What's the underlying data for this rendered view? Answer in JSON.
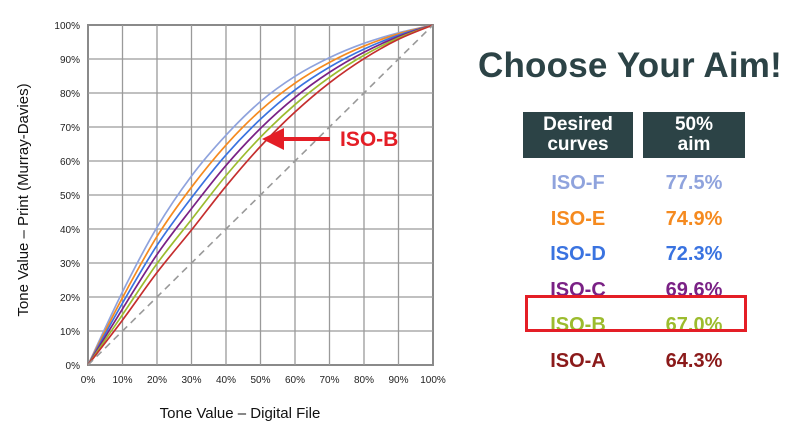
{
  "chart_data": {
    "type": "line",
    "xlabel": "Tone Value – Digital File",
    "ylabel": "Tone Value – Print (Murray-Davies)",
    "xlim": [
      0,
      100
    ],
    "ylim": [
      0,
      100
    ],
    "x_ticks": [
      "0%",
      "10%",
      "20%",
      "30%",
      "40%",
      "50%",
      "60%",
      "70%",
      "80%",
      "90%",
      "100%"
    ],
    "y_ticks": [
      "0%",
      "10%",
      "20%",
      "30%",
      "40%",
      "50%",
      "60%",
      "70%",
      "80%",
      "90%",
      "100%"
    ],
    "grid": true,
    "series": [
      {
        "name": "ISO-F",
        "color": "#8fa3dd",
        "x": [
          0,
          10,
          20,
          30,
          40,
          50,
          60,
          70,
          80,
          90,
          100
        ],
        "values": [
          0,
          21.5,
          40.5,
          55.6,
          67.6,
          77.5,
          84.9,
          90.4,
          94.6,
          97.7,
          100
        ]
      },
      {
        "name": "ISO-E",
        "color": "#f58a1f",
        "x": [
          0,
          10,
          20,
          30,
          40,
          50,
          60,
          70,
          80,
          90,
          100
        ],
        "values": [
          0,
          19.8,
          37.8,
          52.3,
          64.7,
          74.9,
          82.9,
          89.0,
          93.8,
          97.4,
          100
        ]
      },
      {
        "name": "ISO-D",
        "color": "#3a73e0",
        "x": [
          0,
          10,
          20,
          30,
          40,
          50,
          60,
          70,
          80,
          90,
          100
        ],
        "values": [
          0,
          18.2,
          35.2,
          49.2,
          61.8,
          72.3,
          80.9,
          87.6,
          92.9,
          97.0,
          100
        ]
      },
      {
        "name": "ISO-C",
        "color": "#7a2185",
        "x": [
          0,
          10,
          20,
          30,
          40,
          50,
          60,
          70,
          80,
          90,
          100
        ],
        "values": [
          0,
          16.5,
          32.5,
          46.0,
          58.7,
          69.6,
          78.7,
          86.1,
          92.0,
          96.6,
          100
        ]
      },
      {
        "name": "ISO-B",
        "color": "#9cbc2e",
        "x": [
          0,
          10,
          20,
          30,
          40,
          50,
          60,
          70,
          80,
          90,
          100
        ],
        "values": [
          0,
          14.8,
          29.8,
          42.8,
          55.7,
          67.0,
          76.6,
          84.6,
          91.1,
          96.2,
          100
        ]
      },
      {
        "name": "ISO-A",
        "color": "#c52e2e",
        "x": [
          0,
          10,
          20,
          30,
          40,
          50,
          60,
          70,
          80,
          90,
          100
        ],
        "values": [
          0,
          13.2,
          27.2,
          39.7,
          52.6,
          64.3,
          74.4,
          83.0,
          90.1,
          95.8,
          100
        ]
      },
      {
        "name": "",
        "color": "#999999",
        "dashed": true,
        "x": [
          0,
          100
        ],
        "values": [
          0,
          100
        ]
      }
    ],
    "annotations": [
      {
        "text": "ISO-B",
        "points_to": "ISO-B",
        "color": "#e41e26"
      }
    ]
  },
  "panel": {
    "title": "Choose Your Aim!",
    "header_desired": "Desired curves",
    "header_aim": "50% aim",
    "header_bg": "#2c4346",
    "rows": [
      {
        "name": "ISO-F",
        "aim": "77.5%",
        "color": "#8fa3dd"
      },
      {
        "name": "ISO-E",
        "aim": "74.9%",
        "color": "#f58a1f"
      },
      {
        "name": "ISO-D",
        "aim": "72.3%",
        "color": "#3a73e0"
      },
      {
        "name": "ISO-C",
        "aim": "69.6%",
        "color": "#7a2185"
      },
      {
        "name": "ISO-B",
        "aim": "67.0%",
        "color": "#9cbc2e",
        "highlighted": true
      },
      {
        "name": "ISO-A",
        "aim": "64.3%",
        "color": "#8b1a1a"
      }
    ],
    "highlight_color": "#e41e26"
  }
}
